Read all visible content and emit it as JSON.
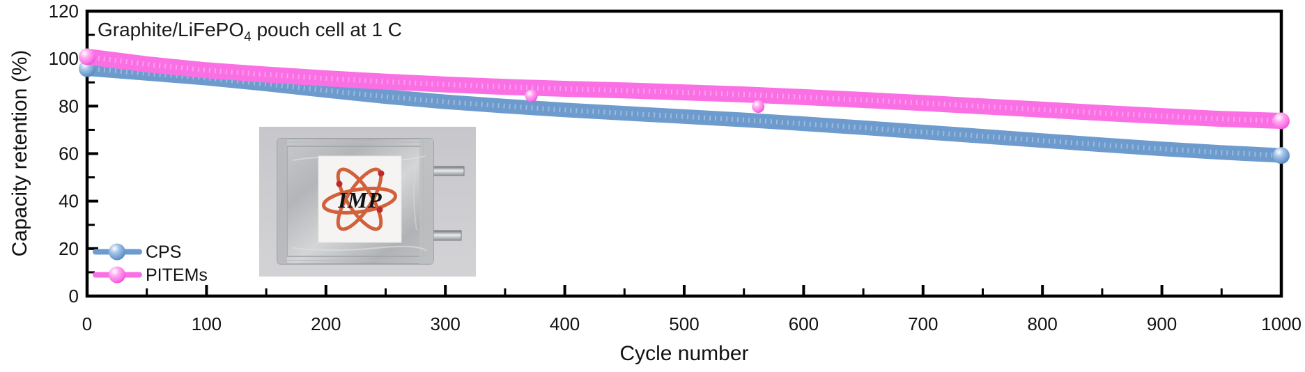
{
  "figure": {
    "title": {
      "prefix": "Graphite/LiFePO",
      "sub": "4",
      "suffix": " pouch cell at 1 C"
    },
    "x_axis": {
      "label": "Cycle number",
      "min": 0,
      "max": 1000,
      "major_ticks": [
        0,
        100,
        200,
        300,
        400,
        500,
        600,
        700,
        800,
        900,
        1000
      ],
      "minor_step": 50
    },
    "y_axis": {
      "label": "Capacity retention (%)",
      "min": 0,
      "max": 120,
      "major_ticks": [
        0,
        20,
        40,
        60,
        80,
        100,
        120
      ],
      "minor_step": 10
    },
    "legend": [
      {
        "name": "CPS",
        "color": "#6D9BCD",
        "color_light": "#A3C3E8",
        "color_dark": "#4A7CB2"
      },
      {
        "name": "PITEMs",
        "color": "#FB6FE5",
        "color_light": "#FFA8F1",
        "color_dark": "#D944C6"
      }
    ]
  },
  "chart_data": {
    "type": "scatter",
    "title": "Graphite/LiFePO4 pouch cell at 1 C",
    "xlabel": "Cycle number",
    "ylabel": "Capacity retention (%)",
    "xlim": [
      0,
      1000
    ],
    "ylim": [
      0,
      120
    ],
    "grid": false,
    "legend_position": "lower-left",
    "x": [
      0,
      50,
      100,
      150,
      200,
      250,
      300,
      350,
      400,
      450,
      500,
      550,
      600,
      650,
      700,
      750,
      800,
      850,
      900,
      950,
      1000
    ],
    "series": [
      {
        "name": "CPS",
        "color": "#6D9BCD",
        "values": [
          95.8,
          93.8,
          91.8,
          89.3,
          86.6,
          84.0,
          81.8,
          80.0,
          78.4,
          77.0,
          75.6,
          74.2,
          72.6,
          70.9,
          69.1,
          67.3,
          65.5,
          63.7,
          62.0,
          60.5,
          59.2
        ],
        "outliers": []
      },
      {
        "name": "PITEMs",
        "color": "#FB6FE5",
        "values": [
          100.8,
          97.6,
          95.1,
          93.3,
          91.7,
          90.3,
          89.1,
          88.1,
          87.3,
          86.6,
          85.8,
          84.9,
          83.8,
          82.6,
          81.3,
          79.9,
          78.5,
          77.1,
          75.8,
          74.6,
          73.8
        ],
        "outliers": [
          {
            "x": 372,
            "y": 84.3
          },
          {
            "x": 562,
            "y": 79.8
          }
        ]
      }
    ]
  },
  "inset": {
    "logo_text": "IMP"
  }
}
